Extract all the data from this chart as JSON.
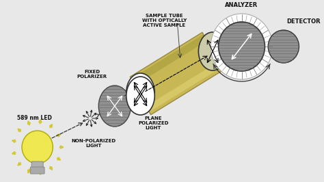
{
  "bg_color": "#ebebeb",
  "labels": {
    "led": "589 nm LED",
    "non_polarized": "NON-POLARIZED\nLIGHT",
    "fixed_polarizer": "FIXED\nPOLARIZER",
    "plane_polarized": "PLANE\nPOLARIZED\nLIGHT",
    "sample_tube": "SAMPLE TUBE\nWITH OPTICALLY\nACTIVE SAMPLE",
    "analyzer": "ANALYZER",
    "detector": "DETECTOR"
  },
  "colors": {
    "background": "#e8e8e8",
    "bulb_body": "#f0e850",
    "bulb_rays": "#d4c830",
    "bulb_base": "#b0b0b0",
    "polarizer_disk": "#909090",
    "tube_body": "#c8b855",
    "tube_top": "#ddd070",
    "tube_bottom": "#a09535",
    "analyzer_disk": "#909090",
    "analyzer_ring_bg": "#ffffff",
    "detector_disk": "#909090",
    "arrow_color": "#222222",
    "text_color": "#111111"
  }
}
